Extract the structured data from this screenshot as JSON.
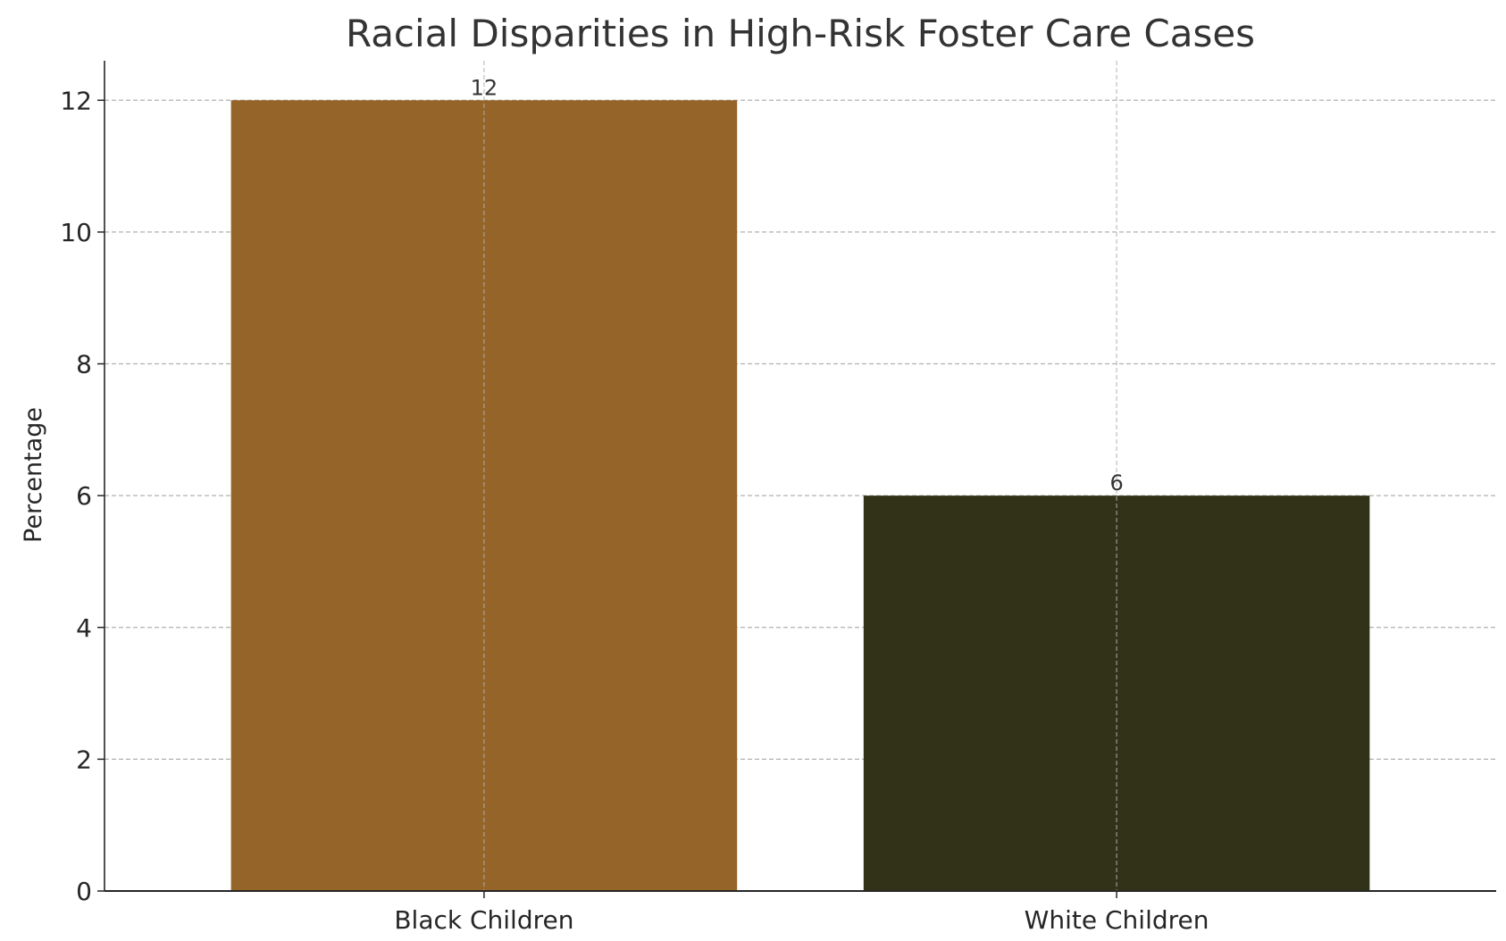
{
  "chart_data": {
    "type": "bar",
    "title": "Racial Disparities in High-Risk Foster Care Cases",
    "xlabel": "",
    "ylabel": "Percentage",
    "categories": [
      "Black Children",
      "White Children"
    ],
    "values": [
      12,
      6
    ],
    "data_labels": [
      "12",
      "6"
    ],
    "colors": [
      "#956428",
      "#323219"
    ],
    "ylim": [
      0,
      12.6
    ],
    "yticks": [
      0,
      2,
      4,
      6,
      8,
      10,
      12
    ],
    "grid": true,
    "legend": "none"
  }
}
